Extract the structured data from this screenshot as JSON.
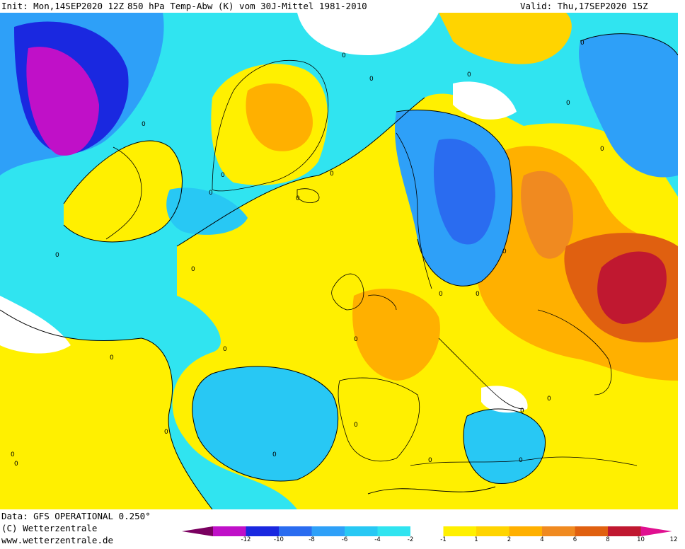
{
  "header": {
    "init": "Init: Mon,14SEP2020 12Z",
    "product": "850 hPa Temp-Abw (K) vom 30J-Mittel 1981-2010",
    "valid": "Valid: Thu,17SEP2020 15Z"
  },
  "footer": {
    "data_source": "Data: GFS OPERATIONAL 0.250°",
    "copyright": "(C) Wetterzentrale",
    "website": "www.wetterzentrale.de"
  },
  "legend": {
    "ticks": [
      "-12",
      "-10",
      "-8",
      "-6",
      "-4",
      "-2",
      "-1",
      "1",
      "2",
      "4",
      "6",
      "8",
      "10",
      "12"
    ],
    "colors": [
      "#7a0060",
      "#c010c8",
      "#1a28e0",
      "#2a6cf0",
      "#2ea0f8",
      "#28c8f4",
      "#30e4f0",
      "#ffffff",
      "#fff000",
      "#ffd400",
      "#ffb000",
      "#f08a20",
      "#e06010",
      "#c01830",
      "#e01090"
    ]
  },
  "contour_labels": [
    "0",
    "0",
    "0",
    "0",
    "0",
    "0",
    "0",
    "0",
    "0",
    "0",
    "0",
    "0",
    "0",
    "0",
    "0",
    "0",
    "0",
    "0",
    "0",
    "0",
    "0",
    "0",
    "0",
    "0",
    "0",
    "0",
    "0",
    "0"
  ]
}
